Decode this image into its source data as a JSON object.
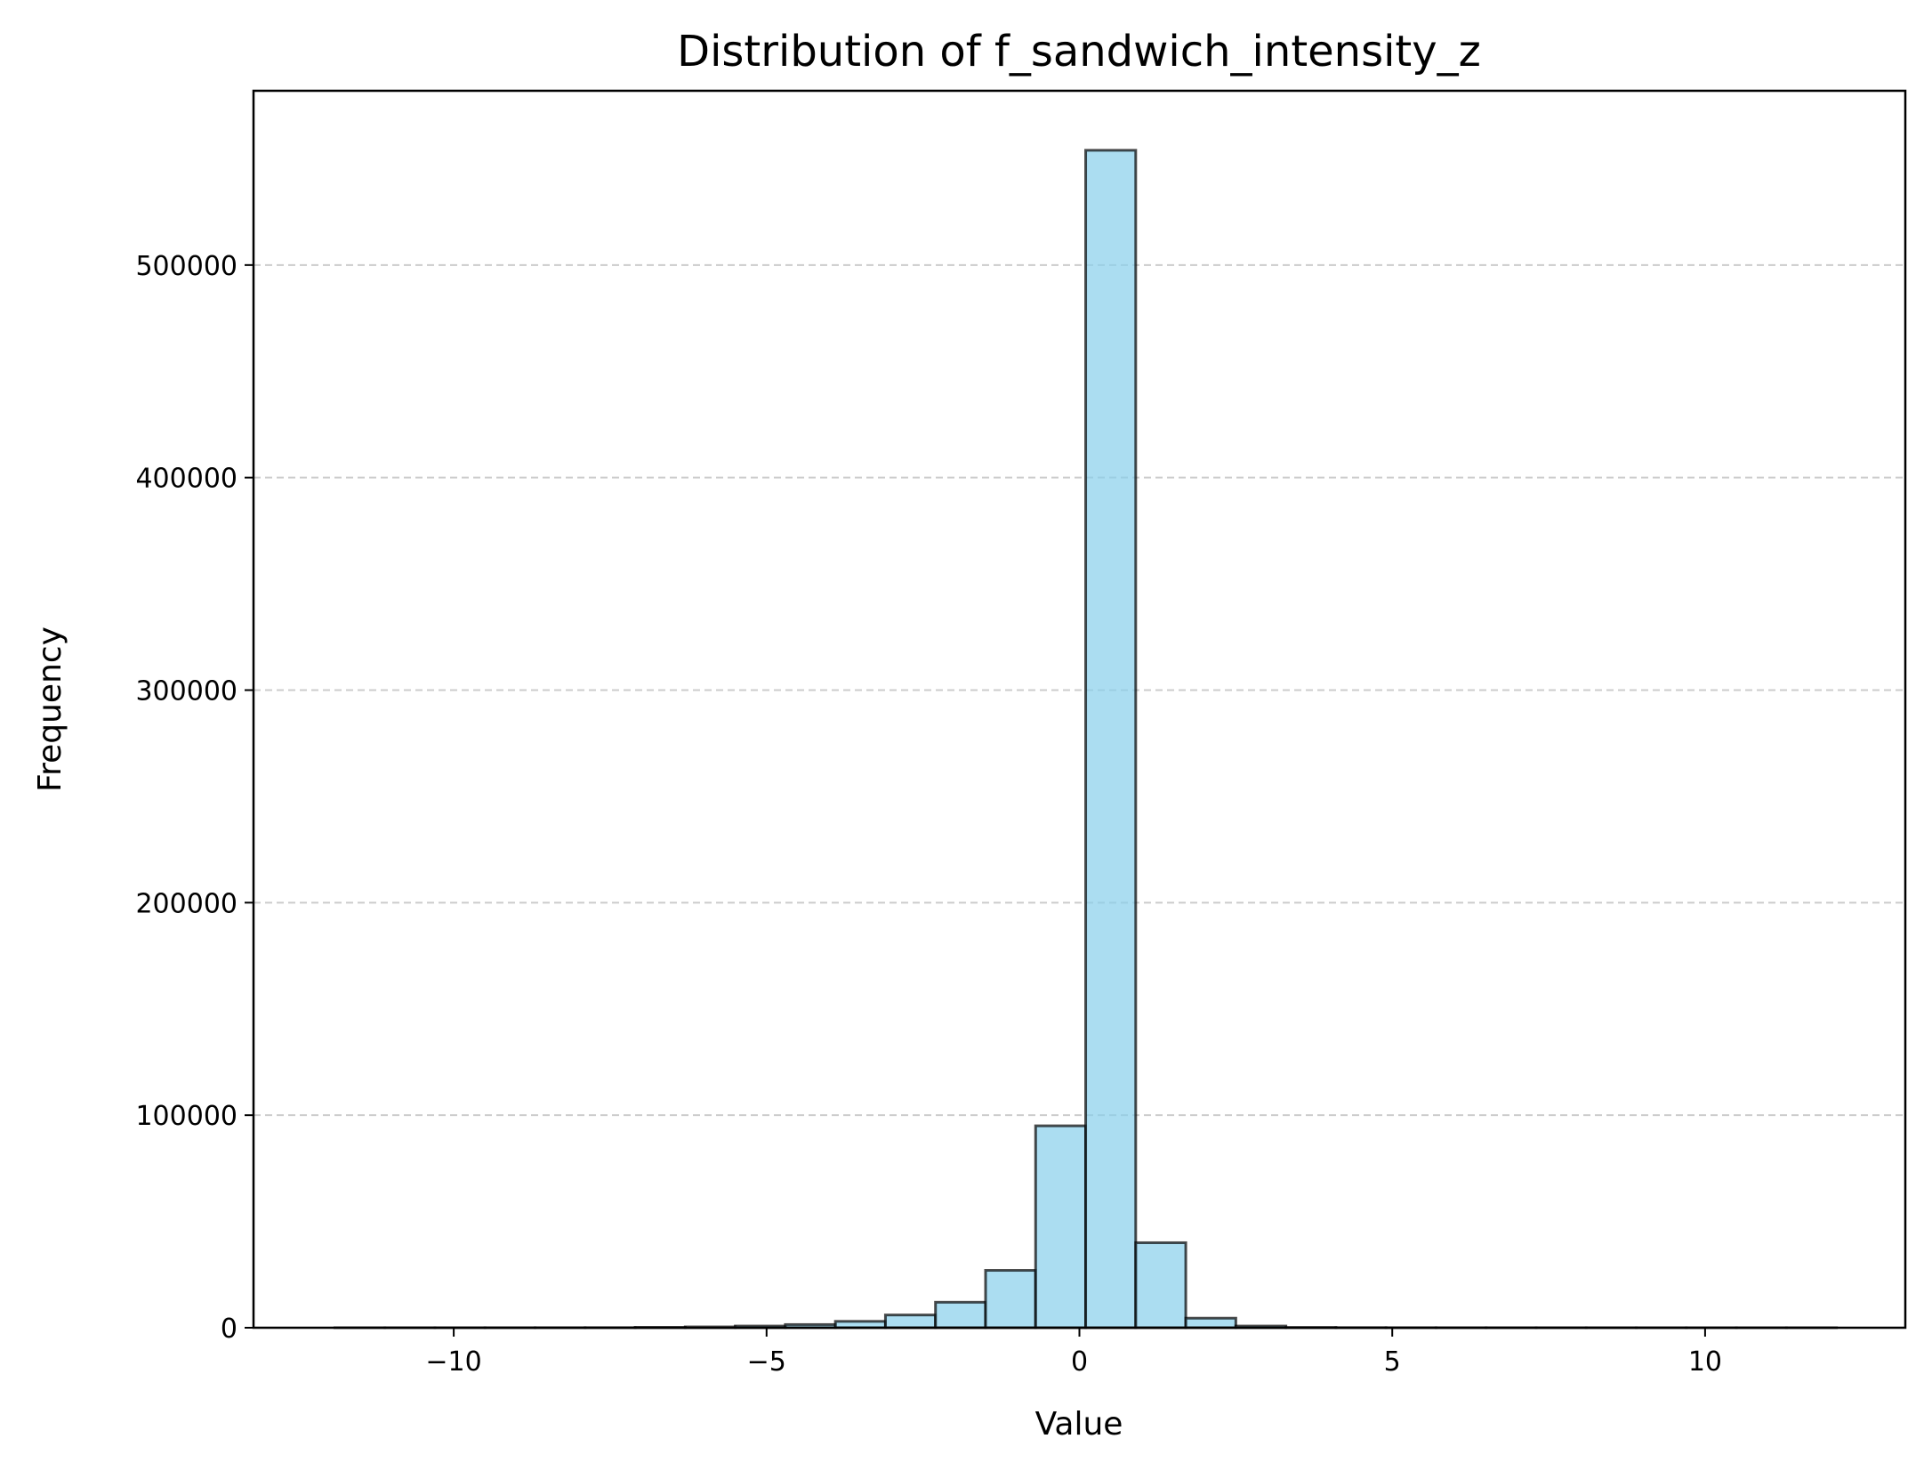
{
  "chart_data": {
    "type": "bar",
    "title": "Distribution of f_sandwich_intensity_z",
    "xlabel": "Value",
    "ylabel": "Frequency",
    "xlim": [
      -13.2,
      13.2
    ],
    "ylim": [
      0,
      582000
    ],
    "xticks": [
      -10,
      -5,
      0,
      5,
      10
    ],
    "xtick_labels": [
      "−10",
      "−5",
      "0",
      "5",
      "10"
    ],
    "yticks": [
      0,
      100000,
      200000,
      300000,
      400000,
      500000
    ],
    "ytick_labels": [
      "0",
      "100000",
      "200000",
      "300000",
      "400000",
      "500000"
    ],
    "grid": "y-dashed",
    "bar_color": "#87CEEB",
    "bar_edge_color": "#000000",
    "bins": [
      {
        "x0": -11.9,
        "x1": -11.1,
        "value": 3
      },
      {
        "x0": -11.1,
        "x1": -10.3,
        "value": 5
      },
      {
        "x0": -10.3,
        "x1": -9.5,
        "value": 8
      },
      {
        "x0": -9.5,
        "x1": -8.7,
        "value": 12
      },
      {
        "x0": -8.7,
        "x1": -7.9,
        "value": 20
      },
      {
        "x0": -7.9,
        "x1": -7.1,
        "value": 40
      },
      {
        "x0": -7.1,
        "x1": -6.3,
        "value": 200
      },
      {
        "x0": -6.3,
        "x1": -5.5,
        "value": 400
      },
      {
        "x0": -5.5,
        "x1": -4.7,
        "value": 800
      },
      {
        "x0": -4.7,
        "x1": -3.9,
        "value": 1500
      },
      {
        "x0": -3.9,
        "x1": -3.1,
        "value": 3000
      },
      {
        "x0": -3.1,
        "x1": -2.3,
        "value": 6000
      },
      {
        "x0": -2.3,
        "x1": -1.5,
        "value": 12000
      },
      {
        "x0": -1.5,
        "x1": -0.7,
        "value": 27000
      },
      {
        "x0": -0.7,
        "x1": 0.1,
        "value": 95000
      },
      {
        "x0": 0.1,
        "x1": 0.9,
        "value": 554000
      },
      {
        "x0": 0.9,
        "x1": 1.7,
        "value": 40000
      },
      {
        "x0": 1.7,
        "x1": 2.5,
        "value": 4500
      },
      {
        "x0": 2.5,
        "x1": 3.3,
        "value": 800
      },
      {
        "x0": 3.3,
        "x1": 4.1,
        "value": 150
      },
      {
        "x0": 4.1,
        "x1": 4.9,
        "value": 50
      },
      {
        "x0": 4.9,
        "x1": 5.7,
        "value": 20
      },
      {
        "x0": 5.7,
        "x1": 6.5,
        "value": 10
      },
      {
        "x0": 6.5,
        "x1": 7.3,
        "value": 8
      },
      {
        "x0": 7.3,
        "x1": 8.1,
        "value": 5
      },
      {
        "x0": 8.1,
        "x1": 8.9,
        "value": 4
      },
      {
        "x0": 8.9,
        "x1": 9.7,
        "value": 3
      },
      {
        "x0": 9.7,
        "x1": 10.5,
        "value": 2
      },
      {
        "x0": 10.5,
        "x1": 11.3,
        "value": 2
      },
      {
        "x0": 11.3,
        "x1": 12.1,
        "value": 1
      }
    ]
  }
}
